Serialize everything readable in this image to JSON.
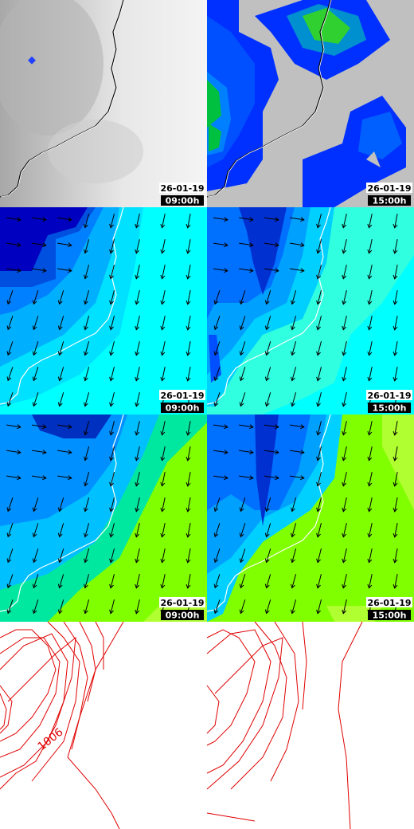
{
  "panels": [
    {
      "date": "26-01-19",
      "time": "09:00h"
    },
    {
      "date": "26-01-19",
      "time": "15:00h"
    },
    {
      "date": "26-01-19",
      "time": "09:00h"
    },
    {
      "date": "26-01-19",
      "time": "15:00h"
    },
    {
      "date": "26-01-19",
      "time": "09:00h"
    },
    {
      "date": "26-01-19",
      "time": "15:00h"
    }
  ],
  "contour_label": "1006"
}
